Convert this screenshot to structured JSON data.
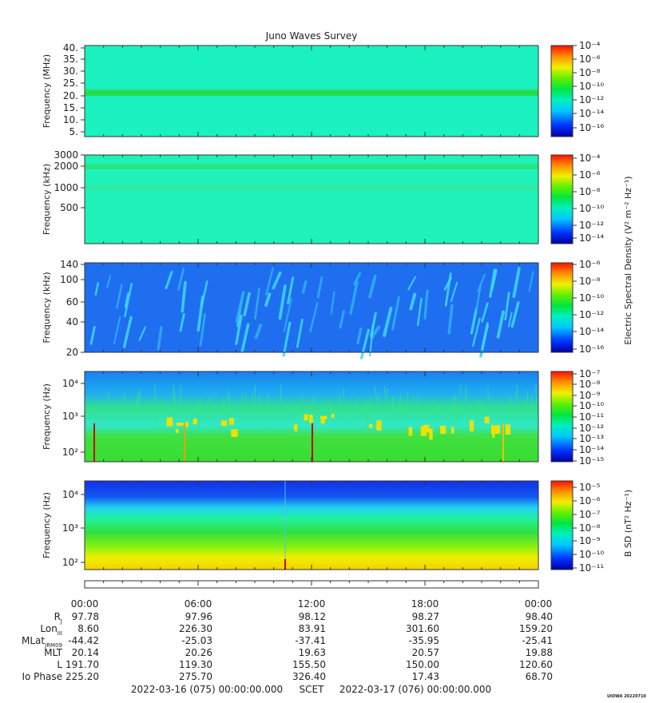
{
  "title": "Juno Waves Survey",
  "colors": {
    "panel_bg_hf": "#19f2c0",
    "panel_bg_mf": "#1ef2b8",
    "panel_bg_lf": "#1f6ef0",
    "axis": "#333333"
  },
  "colorbar_label_electric": "Electric Spectral Density (V² m⁻² Hz⁻¹)",
  "colorbar_label_magnetic": "B SD (nT² Hz⁻¹)",
  "panels": [
    {
      "ylabel": "Frequency (MHz)",
      "yticks": [
        "40.",
        "35.",
        "30.",
        "25.",
        "20.",
        "15.",
        "10.",
        "5."
      ],
      "cbar_ticks": [
        "10⁻⁴",
        "10⁻⁶",
        "10⁻⁸",
        "10⁻¹⁰",
        "10⁻¹²",
        "10⁻¹⁴",
        "10⁻¹⁶"
      ]
    },
    {
      "ylabel": "Frequency (kHz)",
      "yticks": [
        "3000",
        "2000",
        "1000",
        "500"
      ],
      "cbar_ticks": [
        "10⁻⁴",
        "10⁻⁶",
        "10⁻⁸",
        "10⁻¹⁰",
        "10⁻¹²",
        "10⁻¹⁴"
      ]
    },
    {
      "ylabel": "Frequency (kHz)",
      "yticks": [
        "140",
        "100",
        "60",
        "40",
        "20"
      ],
      "cbar_ticks": [
        "10⁻⁶",
        "10⁻⁸",
        "10⁻¹⁰",
        "10⁻¹²",
        "10⁻¹⁴",
        "10⁻¹⁶"
      ]
    },
    {
      "ylabel": "Frequency (Hz)",
      "yticks": [
        "10⁴",
        "10³",
        "10²"
      ],
      "cbar_ticks": [
        "10⁻⁷",
        "10⁻⁸",
        "10⁻⁹",
        "10⁻¹⁰",
        "10⁻¹¹",
        "10⁻¹²",
        "10⁻¹³",
        "10⁻¹⁴",
        "10⁻¹⁵"
      ]
    },
    {
      "ylabel": "Frequency (Hz)",
      "yticks": [
        "10⁴",
        "10³",
        "10²"
      ],
      "cbar_ticks": [
        "10⁻⁵",
        "10⁻⁶",
        "10⁻⁷",
        "10⁻⁸",
        "10⁻⁹",
        "10⁻¹⁰",
        "10⁻¹¹"
      ]
    }
  ],
  "time_ticks": [
    "00:00",
    "06:00",
    "12:00",
    "18:00",
    "00:00"
  ],
  "ephemeris": [
    {
      "label": "R",
      "sub": "J",
      "values": [
        "97.78",
        "97.96",
        "98.12",
        "98.27",
        "98.40"
      ]
    },
    {
      "label": "Lon",
      "sub": "III",
      "values": [
        "8.60",
        "226.30",
        "83.91",
        "301.60",
        "159.20"
      ]
    },
    {
      "label": "MLat",
      "sub": "JRM09",
      "values": [
        "-44.42",
        "-25.03",
        "-37.41",
        "-35.95",
        "-25.41"
      ]
    },
    {
      "label": "MLT",
      "sub": "",
      "values": [
        "20.14",
        "20.26",
        "19.63",
        "20.57",
        "19.88"
      ]
    },
    {
      "label": "L",
      "sub": "",
      "values": [
        "191.70",
        "119.30",
        "155.50",
        "150.00",
        "120.60"
      ]
    },
    {
      "label": "Io Phase",
      "sub": "",
      "values": [
        "225.20",
        "275.70",
        "326.40",
        "17.43",
        "68.70"
      ]
    }
  ],
  "footer": {
    "start": "2022-03-16 (075) 00:00:00.000",
    "scet": "SCET",
    "end": "2022-03-17 (076) 00:00:00.000"
  },
  "stamp": "UIOWA 20220710",
  "chart_data": {
    "type": "heatmap",
    "title": "Juno Waves Survey",
    "x_range": [
      "2022-03-16 00:00",
      "2022-03-17 00:00"
    ],
    "x_ticks": [
      "00:00",
      "06:00",
      "12:00",
      "18:00",
      "00:00"
    ],
    "panels": [
      {
        "ylabel": "Frequency (MHz)",
        "ylim": [
          3.5,
          41
        ],
        "scale": "linear",
        "colorbar": "Electric Spectral Density (V² m⁻² Hz⁻¹)",
        "clim": [
          1e-17,
          0.0001
        ],
        "features": [
          "band near 21 MHz"
        ]
      },
      {
        "ylabel": "Frequency (kHz)",
        "ylim": [
          100,
          3000
        ],
        "scale": "log",
        "colorbar": "Electric Spectral Density (V² m⁻² Hz⁻¹)",
        "clim": [
          1e-15,
          0.001
        ]
      },
      {
        "ylabel": "Frequency (kHz)",
        "ylim": [
          20,
          140
        ],
        "scale": "log",
        "colorbar": "Electric Spectral Density (V² m⁻² Hz⁻¹)",
        "clim": [
          1e-17,
          1e-05
        ]
      },
      {
        "ylabel": "Frequency (Hz)",
        "ylim": [
          50,
          20000
        ],
        "scale": "log",
        "colorbar": "Electric Spectral Density (V² m⁻² Hz⁻¹)",
        "clim": [
          1e-15,
          1e-07
        ]
      },
      {
        "ylabel": "Frequency (Hz)",
        "ylim": [
          50,
          20000
        ],
        "scale": "log",
        "colorbar": "B SD (nT² Hz⁻¹)",
        "clim": [
          1e-11,
          3e-05
        ]
      }
    ]
  }
}
